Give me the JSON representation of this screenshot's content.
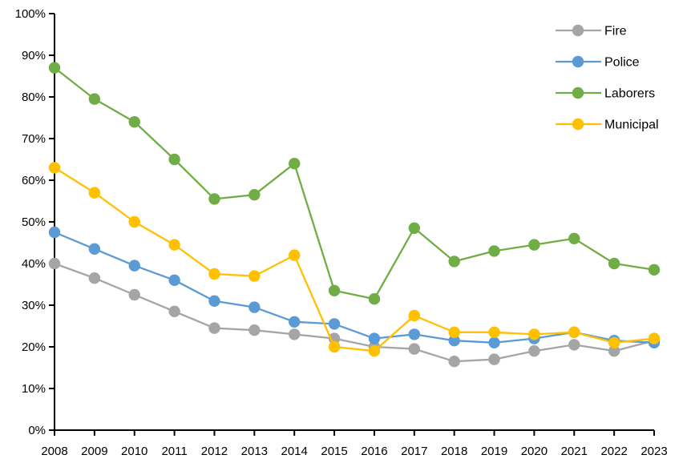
{
  "chart_data": {
    "type": "line",
    "title": "",
    "xlabel": "",
    "ylabel": "",
    "background": "#FFFFFF",
    "axis_color": "#000000",
    "text_color": "#000000",
    "grid": false,
    "marker": "circle",
    "categories": [
      "2008",
      "2009",
      "2010",
      "2011",
      "2012",
      "2013",
      "2014",
      "2015",
      "2016",
      "2017",
      "2018",
      "2019",
      "2020",
      "2021",
      "2022",
      "2023"
    ],
    "y_axis": {
      "min": 0,
      "max": 100,
      "step": 10,
      "format": "percent",
      "tick_labels": [
        "0%",
        "10%",
        "20%",
        "30%",
        "40%",
        "50%",
        "60%",
        "70%",
        "80%",
        "90%",
        "100%"
      ]
    },
    "legend": {
      "position": "top-right",
      "entries": [
        "Fire",
        "Police",
        "Laborers",
        "Municipal"
      ]
    },
    "series": [
      {
        "name": "Fire",
        "color": "#A5A5A5",
        "values": [
          40,
          36.5,
          32.5,
          28.5,
          24.5,
          24,
          23,
          22,
          20,
          19.5,
          16.5,
          17,
          19,
          20.5,
          19,
          21.5
        ]
      },
      {
        "name": "Police",
        "color": "#5B9BD5",
        "values": [
          47.5,
          43.5,
          39.5,
          36,
          31,
          29.5,
          26,
          25.5,
          22,
          23,
          21.5,
          21,
          22,
          23.5,
          21.5,
          21
        ]
      },
      {
        "name": "Laborers",
        "color": "#70AD47",
        "values": [
          87,
          79.5,
          74,
          65,
          55.5,
          56.5,
          64,
          33.5,
          31.5,
          48.5,
          40.5,
          43,
          44.5,
          46,
          40,
          38.5
        ]
      },
      {
        "name": "Municipal",
        "color": "#FFC000",
        "values": [
          63,
          57,
          50,
          44.5,
          37.5,
          37,
          42,
          20,
          19,
          27.5,
          23.5,
          23.5,
          23,
          23.5,
          21,
          22
        ]
      }
    ]
  }
}
